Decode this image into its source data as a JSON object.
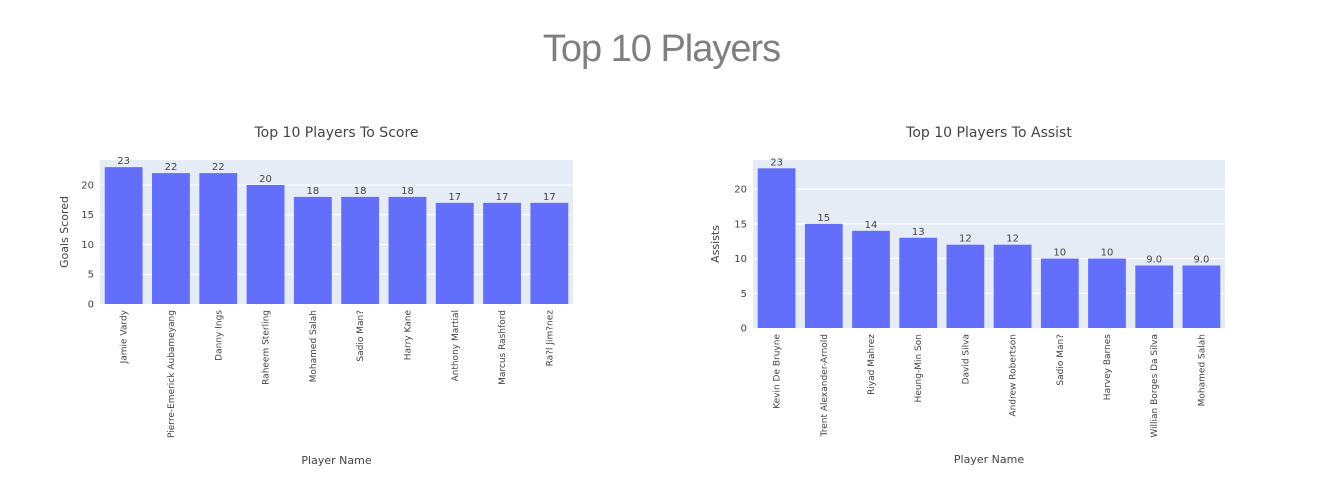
{
  "title": "Top 10 Players",
  "colors": {
    "bar": "#636efa",
    "plot_bg": "#e5ecf6",
    "grid": "#ffffff",
    "text": "#444444"
  },
  "chart_data": [
    {
      "type": "bar",
      "title": "Top 10 Players To Score",
      "xlabel": "Player Name",
      "ylabel": "Goals Scored",
      "categories": [
        "Jamie Vardy",
        "Pierre-Emerick Aubameyang",
        "Danny Ings",
        "Raheem Sterling",
        "Mohamed Salah",
        "Sadio Man?",
        "Harry Kane",
        "Anthony Martial",
        "Marcus Rashford",
        "Ra?l Jim?nez"
      ],
      "values": [
        23,
        22,
        22,
        20,
        18,
        18,
        18,
        17,
        17,
        17
      ],
      "value_labels": [
        "23",
        "22",
        "22",
        "20",
        "18",
        "18",
        "18",
        "17",
        "17",
        "17"
      ],
      "yticks": [
        "0",
        "5",
        "10",
        "15",
        "20"
      ],
      "ylim": [
        0,
        24.2
      ],
      "grid": true
    },
    {
      "type": "bar",
      "title": "Top 10 Players To Assist",
      "xlabel": "Player Name",
      "ylabel": "Assists",
      "categories": [
        "Kevin De Bruyne",
        "Trent Alexander-Arnold",
        "Riyad Mahrez",
        "Heung-Min Son",
        "David Silva",
        "Andrew Robertson",
        "Sadio Man?",
        "Harvey Barnes",
        "Willian Borges Da Silva",
        "Mohamed Salah"
      ],
      "values": [
        23,
        15,
        14,
        13,
        12,
        12,
        10,
        10,
        9,
        9
      ],
      "value_labels": [
        "23",
        "15",
        "14",
        "13",
        "12",
        "12",
        "10",
        "10",
        "9.0",
        "9.0"
      ],
      "yticks": [
        "0",
        "5",
        "10",
        "15",
        "20"
      ],
      "ylim": [
        0,
        24.2
      ],
      "grid": true
    }
  ]
}
